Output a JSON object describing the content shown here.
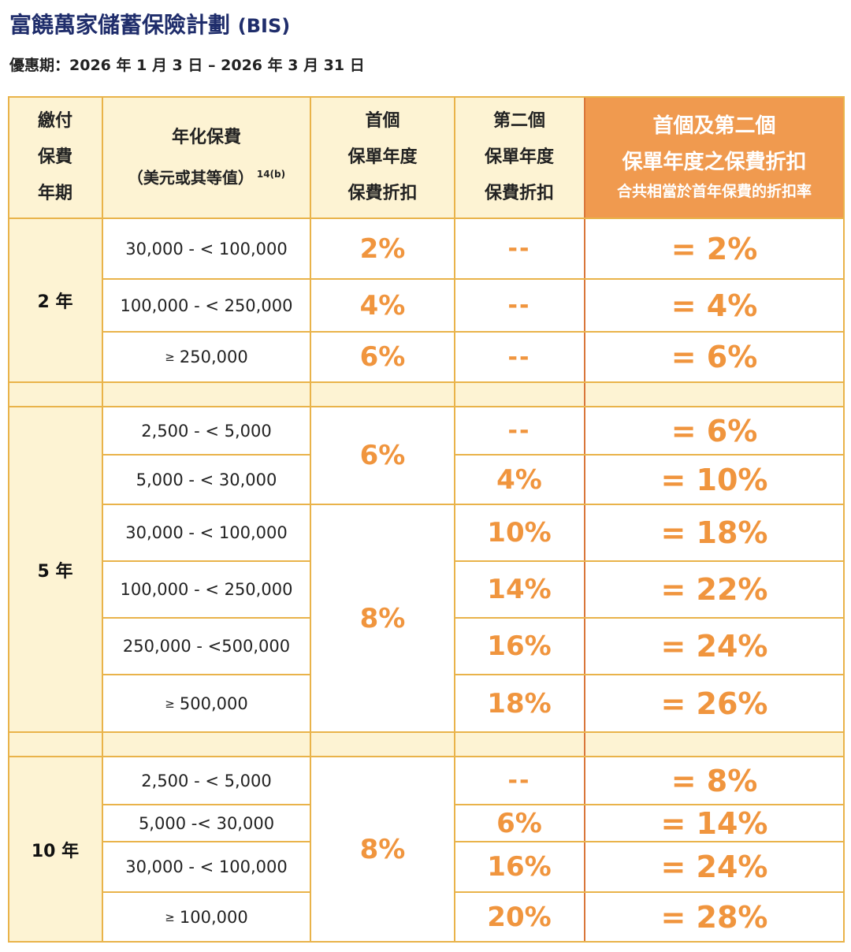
{
  "title": "富饒萬家儲蓄保險計劃",
  "title_code": "(BIS)",
  "offer_period": "優惠期：2026 年 1 月 3 日 – 2026 年 3 月 31 日",
  "header": {
    "term": [
      "繳付",
      "保費",
      "年期"
    ],
    "premium_line1": "年化保費",
    "premium_line2": "（美元或其等值）",
    "premium_sup": "14(b)",
    "first": [
      "首個",
      "保單年度",
      "保費折扣"
    ],
    "second": [
      "第二個",
      "保單年度",
      "保費折扣"
    ],
    "combined": [
      "首個及第二個",
      "保單年度之保費折扣",
      "合共相當於首年保費的折扣率"
    ]
  },
  "groups": [
    {
      "term": "2 年",
      "rows": [
        {
          "range": "30,000 - < 100,000",
          "first": "2%",
          "second": "--",
          "total": "= 2%"
        },
        {
          "range": "100,000 - < 250,000",
          "first": "4%",
          "second": "--",
          "total": "= 4%"
        },
        {
          "range_ge": "≥",
          "range": "250,000",
          "first": "6%",
          "second": "--",
          "total": "= 6%"
        }
      ]
    },
    {
      "term": "5 年",
      "first_merged": [
        "6%",
        "8%"
      ],
      "rows": [
        {
          "range": "2,500 - < 5,000",
          "second": "--",
          "total": "= 6%"
        },
        {
          "range": "5,000 - < 30,000",
          "second": "4%",
          "total": "= 10%"
        },
        {
          "range": "30,000 - < 100,000",
          "second": "10%",
          "total": "= 18%"
        },
        {
          "range": "100,000 - < 250,000",
          "second": "14%",
          "total": "= 22%"
        },
        {
          "range": "250,000 - <500,000",
          "second": "16%",
          "total": "= 24%"
        },
        {
          "range_ge": "≥",
          "range": "500,000",
          "second": "18%",
          "total": "= 26%"
        }
      ]
    },
    {
      "term": "10 年",
      "first_merged": "8%",
      "rows": [
        {
          "range": "2,500 - < 5,000",
          "second": "--",
          "total": "= 8%"
        },
        {
          "range": "5,000 -< 30,000",
          "second": "6%",
          "total": "= 14%"
        },
        {
          "range": "30,000 - < 100,000",
          "second": "16%",
          "total": "= 24%"
        },
        {
          "range_ge": "≥",
          "range": "100,000",
          "second": "20%",
          "total": "= 28%"
        }
      ]
    }
  ],
  "colors": {
    "title": "#1f2d6b",
    "accent_orange": "#f09a4f",
    "value_orange": "#f0953e",
    "cream": "#fdf3d3",
    "grid": "#e9b34a"
  }
}
